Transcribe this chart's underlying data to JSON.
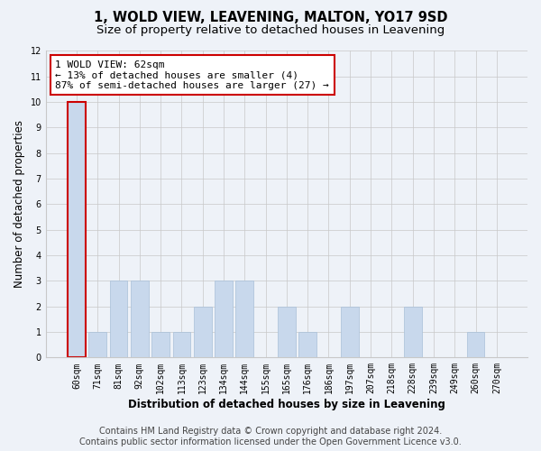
{
  "title": "1, WOLD VIEW, LEAVENING, MALTON, YO17 9SD",
  "subtitle": "Size of property relative to detached houses in Leavening",
  "xlabel": "Distribution of detached houses by size in Leavening",
  "ylabel": "Number of detached properties",
  "categories": [
    "60sqm",
    "71sqm",
    "81sqm",
    "92sqm",
    "102sqm",
    "113sqm",
    "123sqm",
    "134sqm",
    "144sqm",
    "155sqm",
    "165sqm",
    "176sqm",
    "186sqm",
    "197sqm",
    "207sqm",
    "218sqm",
    "228sqm",
    "239sqm",
    "249sqm",
    "260sqm",
    "270sqm"
  ],
  "values": [
    10,
    1,
    3,
    3,
    1,
    1,
    2,
    3,
    3,
    0,
    2,
    1,
    0,
    2,
    0,
    0,
    2,
    0,
    0,
    1,
    0
  ],
  "bar_color": "#c8d8ec",
  "bar_edge_color": "#a8c0d8",
  "highlight_bar_index": 0,
  "highlight_edge_color": "#cc0000",
  "annotation_text": "1 WOLD VIEW: 62sqm\n← 13% of detached houses are smaller (4)\n87% of semi-detached houses are larger (27) →",
  "annotation_box_color": "white",
  "annotation_box_edge_color": "#cc0000",
  "ylim": [
    0,
    12
  ],
  "yticks": [
    0,
    1,
    2,
    3,
    4,
    5,
    6,
    7,
    8,
    9,
    10,
    11,
    12
  ],
  "footer_line1": "Contains HM Land Registry data © Crown copyright and database right 2024.",
  "footer_line2": "Contains public sector information licensed under the Open Government Licence v3.0.",
  "bg_color": "#eef2f8",
  "plot_bg_color": "#eef2f8",
  "title_fontsize": 10.5,
  "subtitle_fontsize": 9.5,
  "axis_label_fontsize": 8.5,
  "tick_fontsize": 7,
  "footer_fontsize": 7,
  "annotation_fontsize": 8
}
